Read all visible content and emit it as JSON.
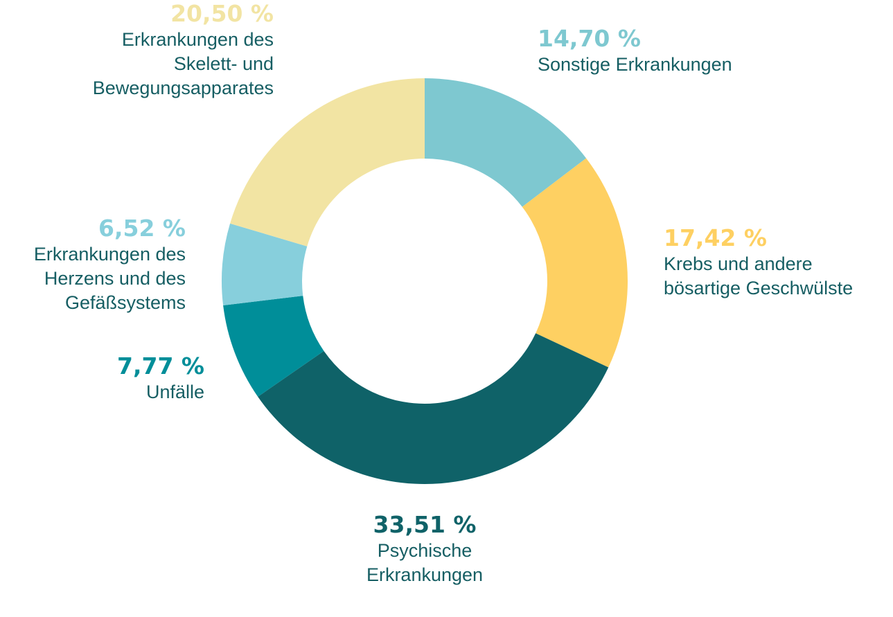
{
  "chart_data": {
    "type": "pie",
    "donut": true,
    "slices": [
      {
        "label": "Sonstige Erkrankungen",
        "value": 14.7,
        "display": "14,70 %",
        "color": "#7ec8d0",
        "text_color": "#7ec8d0"
      },
      {
        "label": "Krebs und andere\nbösartige Geschwülste",
        "value": 17.42,
        "display": "17,42 %",
        "color": "#fed062",
        "text_color": "#fed062"
      },
      {
        "label": "Psychische\nErkrankungen",
        "value": 33.51,
        "display": "33,51 %",
        "color": "#0f6268",
        "text_color": "#0f6268"
      },
      {
        "label": "Unfälle",
        "value": 7.77,
        "display": "7,77 %",
        "color": "#008e99",
        "text_color": "#008e99"
      },
      {
        "label": "Erkrankungen des\nHerzens und des\nGefäßsystems",
        "value": 6.52,
        "display": "6,52 %",
        "color": "#87cfdc",
        "text_color": "#87cfdc"
      },
      {
        "label": "Erkrankungen des\nSkelett- und\nBewegungsapparates",
        "value": 20.5,
        "display": "20,50 %",
        "color": "#f2e4a3",
        "text_color": "#f2e4a3"
      }
    ]
  }
}
